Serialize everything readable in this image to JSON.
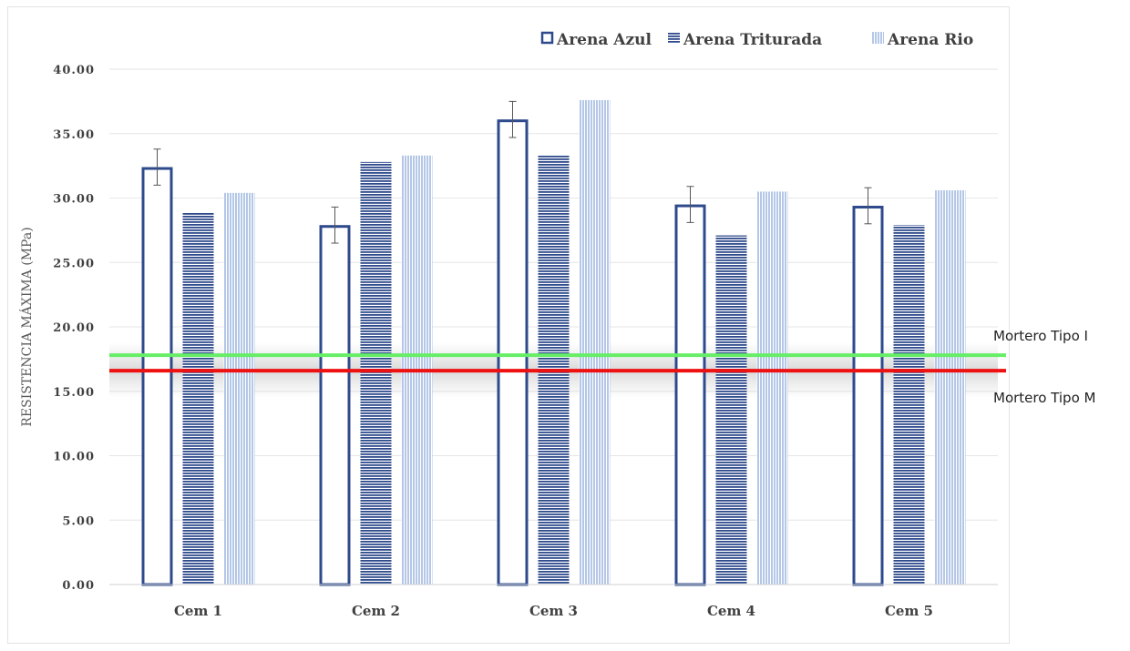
{
  "chart_data": {
    "type": "bar",
    "categories": [
      "Cem 1",
      "Cem 2",
      "Cem 3",
      "Cem 4",
      "Cem 5"
    ],
    "series": [
      {
        "name": "Arena Azul",
        "values": [
          32.4,
          27.9,
          36.1,
          29.5,
          29.4
        ],
        "error": [
          1.4,
          1.4,
          1.4,
          1.4,
          1.4
        ],
        "style": "outline",
        "color": "#2E4A8C"
      },
      {
        "name": "Arena Triturada",
        "values": [
          28.9,
          32.8,
          33.3,
          27.1,
          27.9
        ],
        "style": "horizontal-stripes",
        "color": "#2E4A8C"
      },
      {
        "name": "Arena Rio",
        "values": [
          30.4,
          33.3,
          37.6,
          30.5,
          30.6
        ],
        "style": "vertical-stripes",
        "color": "#B4C7E7"
      }
    ],
    "reference_lines": [
      {
        "label": "Mortero Tipo I",
        "value": 17.8,
        "color": "#66EE66"
      },
      {
        "label": "Mortero Tipo M",
        "value": 16.6,
        "color": "#EE1111"
      }
    ],
    "ylabel": "RESISTENCIA MÁXIMA (MPa)",
    "xlabel": "",
    "title": "",
    "ylim": [
      0,
      40
    ],
    "yticks": [
      "0.00",
      "5.00",
      "10.00",
      "15.00",
      "20.00",
      "25.00",
      "30.00",
      "35.00",
      "40.00"
    ],
    "grid": true,
    "legend_position": "top-right"
  }
}
